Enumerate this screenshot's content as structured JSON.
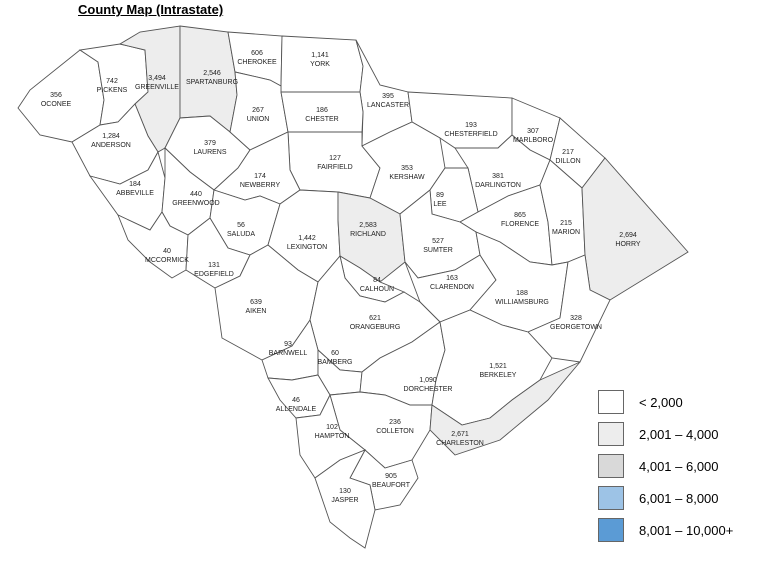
{
  "title": "County Map (Intrastate)",
  "legend": [
    {
      "label": "< 2,000",
      "color": "#ffffff"
    },
    {
      "label": "2,001 – 4,000",
      "color": "#ededed"
    },
    {
      "label": "4,001 – 6,000",
      "color": "#d9d9d9"
    },
    {
      "label": "6,001 – 8,000",
      "color": "#9dc3e6"
    },
    {
      "label": "8,001 – 10,000+",
      "color": "#5b9bd5"
    }
  ],
  "counties": [
    {
      "id": "oconee",
      "name": "OCONEE",
      "value": "356",
      "color": "#ffffff"
    },
    {
      "id": "pickens",
      "name": "PICKENS",
      "value": "742",
      "color": "#ffffff"
    },
    {
      "id": "greenville",
      "name": "GREENVILLE",
      "value": "3,494",
      "color": "#ededed"
    },
    {
      "id": "spartanburg",
      "name": "SPARTANBURG",
      "value": "2,546",
      "color": "#ededed"
    },
    {
      "id": "cherokee",
      "name": "CHEROKEE",
      "value": "606",
      "color": "#ffffff"
    },
    {
      "id": "york",
      "name": "YORK",
      "value": "1,141",
      "color": "#ffffff"
    },
    {
      "id": "lancaster",
      "name": "LANCASTER",
      "value": "395",
      "color": "#ffffff"
    },
    {
      "id": "chesterfield",
      "name": "CHESTERFIELD",
      "value": "193",
      "color": "#ffffff"
    },
    {
      "id": "marlboro",
      "name": "MARLBORO",
      "value": "307",
      "color": "#ffffff"
    },
    {
      "id": "dillon",
      "name": "DILLON",
      "value": "217",
      "color": "#ffffff"
    },
    {
      "id": "anderson",
      "name": "ANDERSON",
      "value": "1,284",
      "color": "#ffffff"
    },
    {
      "id": "laurens",
      "name": "LAURENS",
      "value": "379",
      "color": "#ffffff"
    },
    {
      "id": "union",
      "name": "UNION",
      "value": "267",
      "color": "#ffffff"
    },
    {
      "id": "chester",
      "name": "CHESTER",
      "value": "186",
      "color": "#ffffff"
    },
    {
      "id": "fairfield",
      "name": "FAIRFIELD",
      "value": "127",
      "color": "#ffffff"
    },
    {
      "id": "kershaw",
      "name": "KERSHAW",
      "value": "353",
      "color": "#ffffff"
    },
    {
      "id": "darlington",
      "name": "DARLINGTON",
      "value": "381",
      "color": "#ffffff"
    },
    {
      "id": "abbeville",
      "name": "ABBEVILLE",
      "value": "184",
      "color": "#ffffff"
    },
    {
      "id": "greenwood",
      "name": "GREENWOOD",
      "value": "440",
      "color": "#ffffff"
    },
    {
      "id": "newberry",
      "name": "NEWBERRY",
      "value": "174",
      "color": "#ffffff"
    },
    {
      "id": "lee",
      "name": "LEE",
      "value": "89",
      "color": "#ffffff"
    },
    {
      "id": "florence",
      "name": "FLORENCE",
      "value": "865",
      "color": "#ffffff"
    },
    {
      "id": "marion",
      "name": "MARION",
      "value": "215",
      "color": "#ffffff"
    },
    {
      "id": "horry",
      "name": "HORRY",
      "value": "2,694",
      "color": "#ededed"
    },
    {
      "id": "saluda",
      "name": "SALUDA",
      "value": "56",
      "color": "#ffffff"
    },
    {
      "id": "mccormick",
      "name": "MCCORMICK",
      "value": "40",
      "color": "#ffffff"
    },
    {
      "id": "edgefield",
      "name": "EDGEFIELD",
      "value": "131",
      "color": "#ffffff"
    },
    {
      "id": "lexington",
      "name": "LEXINGTON",
      "value": "1,442",
      "color": "#ffffff"
    },
    {
      "id": "richland",
      "name": "RICHLAND",
      "value": "2,583",
      "color": "#ededed"
    },
    {
      "id": "sumter",
      "name": "SUMTER",
      "value": "527",
      "color": "#ffffff"
    },
    {
      "id": "calhoun",
      "name": "CALHOUN",
      "value": "84",
      "color": "#ffffff"
    },
    {
      "id": "clarendon",
      "name": "CLARENDON",
      "value": "163",
      "color": "#ffffff"
    },
    {
      "id": "williamsburg",
      "name": "WILLIAMSBURG",
      "value": "188",
      "color": "#ffffff"
    },
    {
      "id": "georgetown",
      "name": "GEORGETOWN",
      "value": "328",
      "color": "#ffffff"
    },
    {
      "id": "aiken",
      "name": "AIKEN",
      "value": "639",
      "color": "#ffffff"
    },
    {
      "id": "orangeburg",
      "name": "ORANGEBURG",
      "value": "621",
      "color": "#ffffff"
    },
    {
      "id": "barnwell",
      "name": "BARNWELL",
      "value": "93",
      "color": "#ffffff"
    },
    {
      "id": "bamberg",
      "name": "BAMBERG",
      "value": "60",
      "color": "#ffffff"
    },
    {
      "id": "dorchester",
      "name": "DORCHESTER",
      "value": "1,090",
      "color": "#ffffff"
    },
    {
      "id": "berkeley",
      "name": "BERKELEY",
      "value": "1,521",
      "color": "#ffffff"
    },
    {
      "id": "allendale",
      "name": "ALLENDALE",
      "value": "46",
      "color": "#ffffff"
    },
    {
      "id": "colleton",
      "name": "COLLETON",
      "value": "236",
      "color": "#ffffff"
    },
    {
      "id": "charleston",
      "name": "CHARLESTON",
      "value": "2,671",
      "color": "#ededed"
    },
    {
      "id": "hampton",
      "name": "HAMPTON",
      "value": "102",
      "color": "#ffffff"
    },
    {
      "id": "beaufort",
      "name": "BEAUFORT",
      "value": "905",
      "color": "#ffffff"
    },
    {
      "id": "jasper",
      "name": "JASPER",
      "value": "130",
      "color": "#ffffff"
    }
  ]
}
